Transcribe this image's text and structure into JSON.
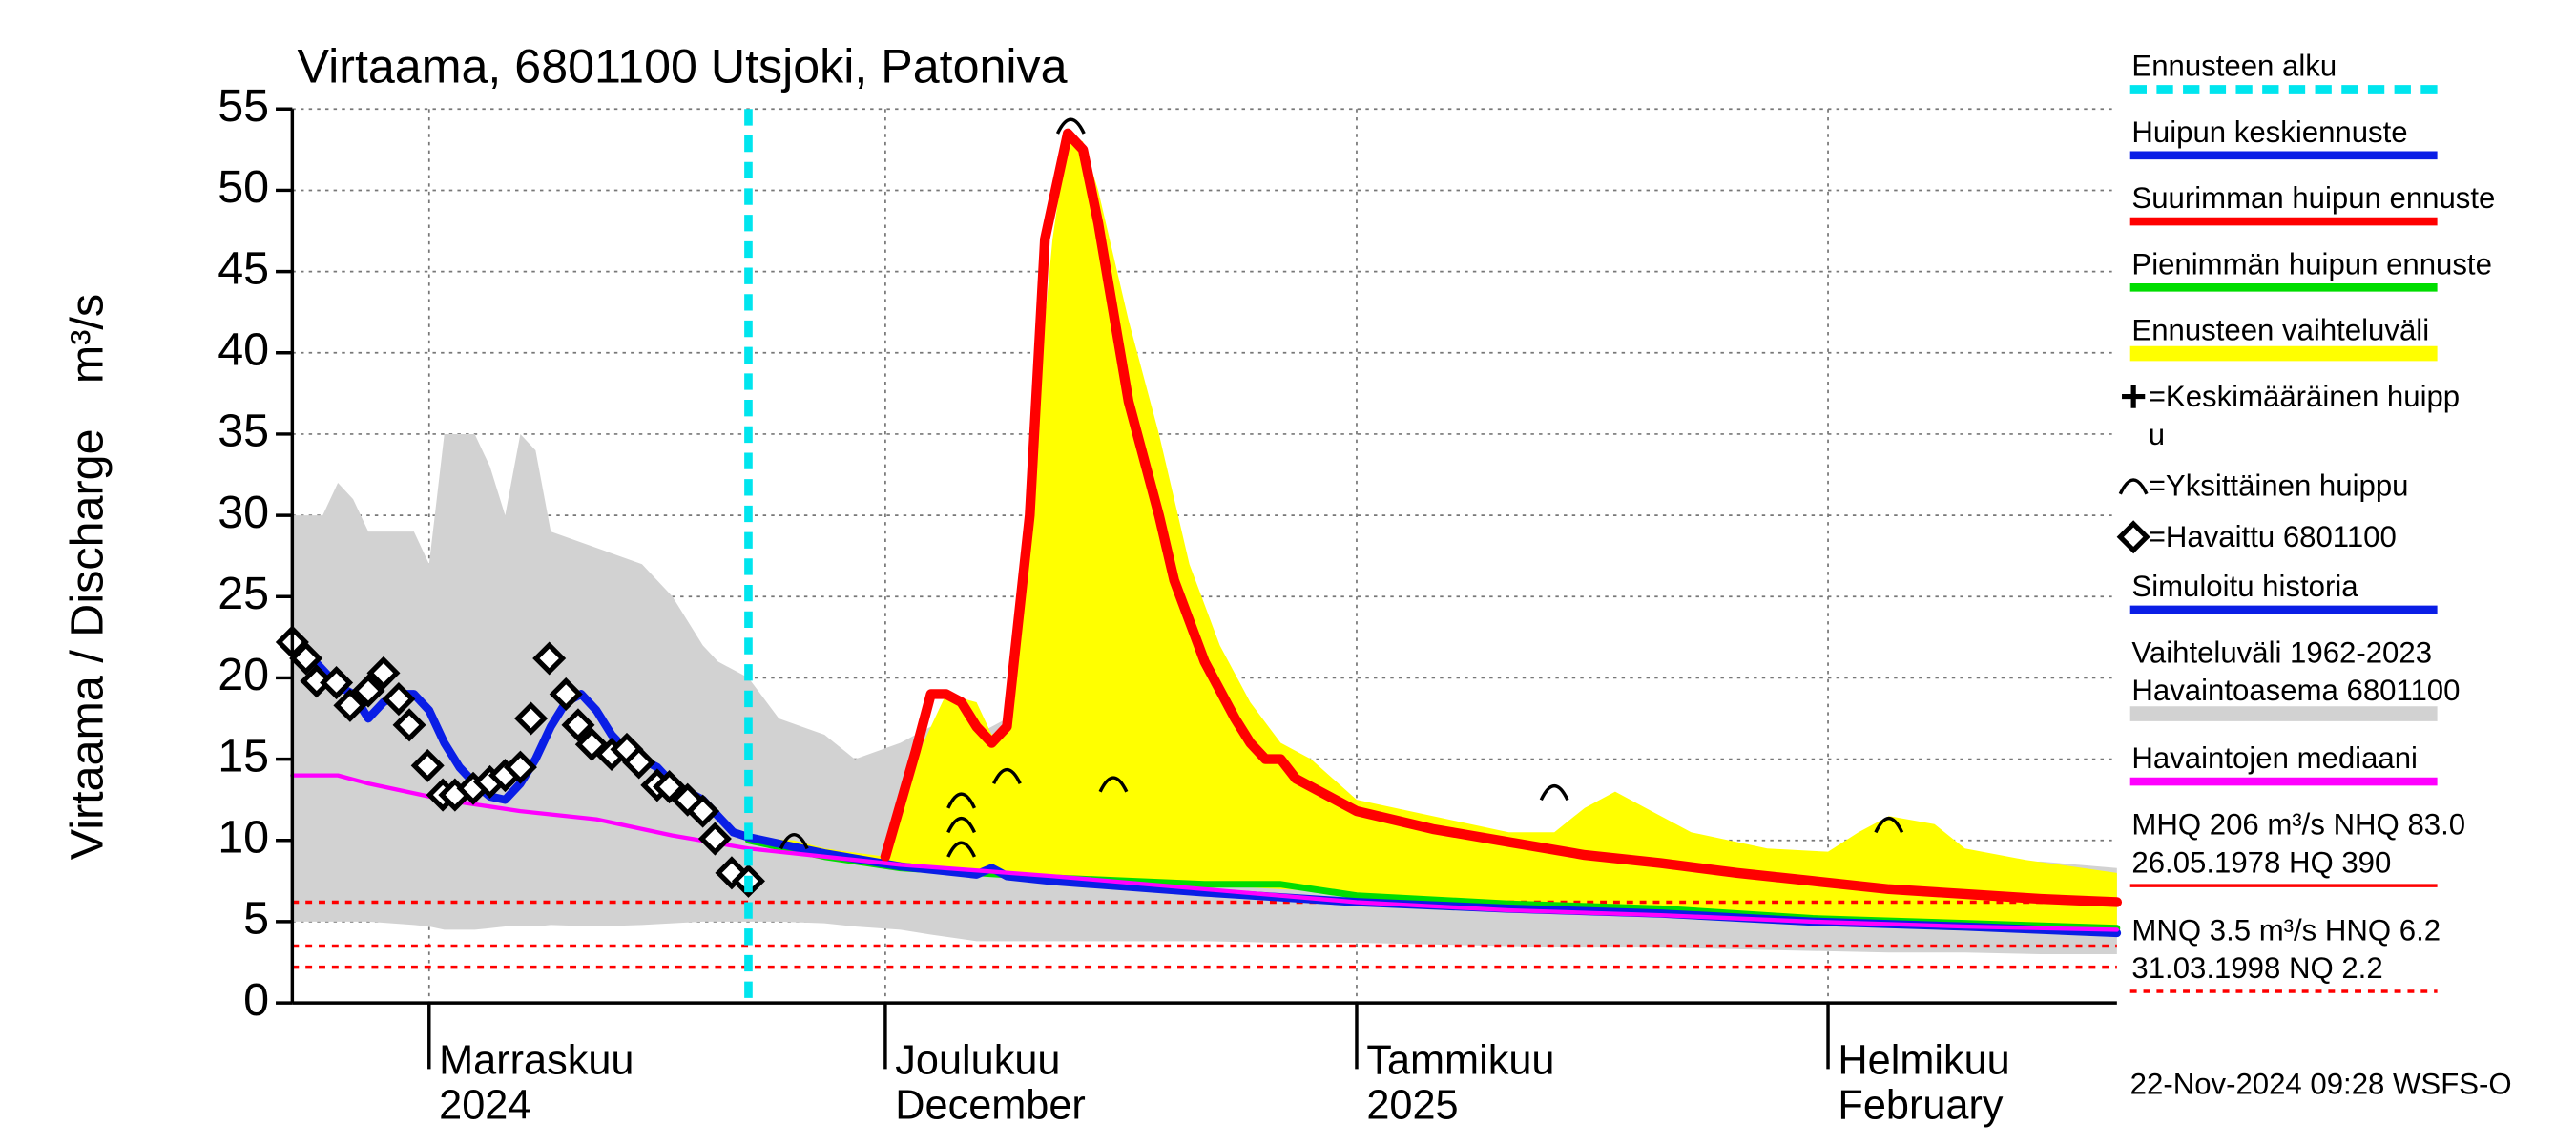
{
  "chart_data": {
    "type": "line",
    "title": "Virtaama, 6801100 Utsjoki, Patoniva",
    "y_label": "Virtaama / Discharge",
    "y_unit": "m³/s",
    "footer": "22-Nov-2024 09:28 WSFS-O",
    "xlim": [
      0,
      120
    ],
    "xticks": [
      {
        "value": 9,
        "label": [
          "Marraskuu",
          "2024"
        ]
      },
      {
        "value": 39,
        "label": [
          "Joulukuu",
          "December"
        ]
      },
      {
        "value": 70,
        "label": [
          "Tammikuu",
          "2025"
        ]
      },
      {
        "value": 101,
        "label": [
          "Helmikuu",
          "February"
        ]
      }
    ],
    "ylim": [
      0,
      55
    ],
    "yticks": [
      0,
      5,
      10,
      15,
      20,
      25,
      30,
      35,
      40,
      45,
      50,
      55
    ],
    "grid": true,
    "series": [
      {
        "name": [
          "Ennusteen alku"
        ],
        "style": "vline",
        "color": "#00e5ee",
        "x": [
          30
        ]
      },
      {
        "name": [
          "Huipun keskiennuste"
        ],
        "style": "line",
        "color": "#0a1ee6",
        "x": [
          30,
          35,
          40,
          45,
          46,
          47,
          50,
          60,
          70,
          80,
          90,
          100,
          110,
          120
        ],
        "values": [
          10.2,
          9.2,
          8.4,
          7.9,
          8.3,
          7.8,
          7.5,
          6.8,
          6.2,
          5.8,
          5.5,
          5,
          4.7,
          4.3
        ]
      },
      {
        "name": [
          "Suurimman huipun ennuste"
        ],
        "style": "line",
        "color": "#ff0000",
        "x": [
          39,
          41,
          42,
          43,
          44,
          45,
          46,
          47,
          48.5,
          49.5,
          51,
          52,
          53,
          55,
          57,
          58,
          60,
          62,
          63,
          64,
          65,
          66,
          68,
          70,
          75,
          80,
          85,
          90,
          95,
          100,
          105,
          110,
          115,
          120
        ],
        "values": [
          9,
          15.5,
          19,
          19,
          18.5,
          17,
          16,
          17,
          30,
          47,
          53.5,
          52.5,
          48,
          37,
          30,
          26,
          21,
          17.5,
          16,
          15,
          15,
          13.8,
          12.8,
          11.8,
          10.7,
          9.9,
          9.1,
          8.6,
          8,
          7.5,
          7,
          6.7,
          6.4,
          6.2
        ]
      },
      {
        "name": [
          "Pienimmän huipun ennuste"
        ],
        "style": "line",
        "color": "#00dd00",
        "x": [
          30,
          35,
          40,
          50,
          60,
          65,
          70,
          80,
          90,
          100,
          110,
          120
        ],
        "values": [
          10,
          9,
          8.3,
          7.7,
          7.3,
          7.3,
          6.6,
          6.1,
          5.8,
          5.2,
          4.9,
          4.6
        ]
      },
      {
        "name": [
          "Ennusteen vaihteluväli"
        ],
        "style": "band",
        "color": "#ffff00",
        "x": [
          30,
          33,
          35,
          39,
          41,
          43,
          45,
          46,
          47,
          49,
          50,
          51,
          52,
          53,
          55,
          57,
          59,
          61,
          63,
          65,
          67,
          70,
          75,
          80,
          83,
          85,
          87,
          89,
          92,
          97,
          101,
          103,
          105,
          108,
          110,
          114,
          120
        ],
        "values": [
          10.2,
          10,
          9.5,
          9,
          15,
          19,
          18.5,
          16.5,
          17,
          37,
          47,
          53.5,
          53,
          50,
          42,
          35,
          27,
          22,
          18.5,
          16,
          15,
          12.5,
          11.5,
          10.5,
          10.5,
          12,
          13,
          12,
          10.5,
          9.5,
          9.3,
          10.5,
          11.5,
          11,
          9.5,
          8.8,
          8
        ],
        "lower": [
          10,
          9.3,
          9,
          8.4,
          8.2,
          8.1,
          8,
          7.9,
          7.85,
          7.7,
          7.6,
          7.55,
          7.5,
          7.45,
          7.4,
          7.3,
          7.25,
          7.2,
          7.1,
          7,
          6.9,
          6.7,
          6.45,
          6.2,
          6.05,
          6,
          5.9,
          5.8,
          5.7,
          5.4,
          5.2,
          5.1,
          5,
          4.95,
          4.9,
          4.75,
          4.6
        ]
      },
      {
        "name": [
          "=Keskimääräinen huipp",
          "u"
        ],
        "style": "markers",
        "marker": "plus",
        "color": "#000000",
        "x": [],
        "values": []
      },
      {
        "name": [
          "=Yksittäinen huippu"
        ],
        "style": "markers",
        "marker": "arc",
        "color": "#000000",
        "x": [
          33,
          44,
          44,
          44,
          47,
          51.2,
          54,
          83,
          105
        ],
        "values": [
          10,
          12.5,
          11,
          9.5,
          14,
          54,
          13.5,
          13,
          11
        ]
      },
      {
        "name": [
          "=Havaittu 6801100"
        ],
        "style": "markers",
        "marker": "diamond",
        "color": "#000000",
        "x": [
          0,
          0.9,
          1.6,
          2.9,
          3.8,
          5,
          6,
          7,
          7.7,
          8.9,
          9.9,
          10.7,
          11.9,
          13,
          14,
          15,
          15.7,
          16.9,
          18,
          18.8,
          19.7,
          21,
          22,
          22.8,
          24,
          24.8,
          26,
          27,
          27.8,
          28.9,
          30
        ],
        "values": [
          22.2,
          21.2,
          19.8,
          19.7,
          18.3,
          19.2,
          20.3,
          18.7,
          17.1,
          14.6,
          12.8,
          12.8,
          13.2,
          13.6,
          14,
          14.5,
          17.5,
          21.2,
          19,
          17.1,
          15.9,
          15.3,
          15.6,
          14.8,
          13.4,
          13.3,
          12.5,
          11.8,
          10.1,
          8,
          7.5
        ]
      },
      {
        "name": [
          "Simuloitu historia"
        ],
        "style": "line",
        "color": "#0a1ee6",
        "x": [
          0,
          1,
          2,
          3,
          4,
          5,
          6,
          7,
          8,
          9,
          10,
          11,
          12,
          13,
          14,
          15,
          16,
          17,
          18,
          19,
          20,
          21,
          22,
          23,
          24,
          25,
          26,
          27,
          28,
          29,
          30
        ],
        "values": [
          22,
          21.5,
          20.5,
          19.5,
          19,
          17.5,
          18.5,
          19,
          19,
          18,
          16,
          14.5,
          13.5,
          12.7,
          12.5,
          13.5,
          15,
          17,
          18.5,
          19,
          18,
          16.5,
          15.5,
          15,
          14.5,
          13.5,
          13,
          12.5,
          11.5,
          10.5,
          10.2
        ]
      },
      {
        "name": [
          "Vaihteluväli 1962-2023",
          " Havaintoasema 6801100"
        ],
        "style": "band",
        "color": "#d2d2d2",
        "x": [
          0,
          2,
          3,
          4,
          5,
          8,
          9,
          10,
          12,
          13,
          14,
          15,
          16,
          17,
          20,
          23,
          25,
          27,
          28,
          30,
          32,
          35,
          37,
          40,
          42,
          45,
          47,
          50,
          55,
          60,
          65,
          70,
          75,
          80,
          85,
          90,
          95,
          100,
          105,
          110,
          115,
          120
        ],
        "values": [
          30,
          30,
          32,
          31,
          29,
          29,
          27,
          35,
          35,
          33,
          30,
          35,
          34,
          29,
          28,
          27,
          25,
          22,
          21,
          20,
          17.5,
          16.5,
          15,
          16,
          17,
          16.5,
          17.5,
          15,
          14.5,
          13,
          12,
          11,
          10.5,
          10,
          9.5,
          9.5,
          9,
          8.7,
          8.5,
          8.5,
          8.7,
          8.3
        ],
        "lower": [
          5,
          5,
          5,
          5,
          5,
          4.8,
          4.7,
          4.5,
          4.5,
          4.6,
          4.7,
          4.7,
          4.7,
          4.8,
          4.7,
          4.8,
          4.9,
          5,
          5,
          5,
          5,
          4.9,
          4.7,
          4.5,
          4.2,
          3.8,
          3.8,
          3.8,
          3.8,
          3.8,
          3.7,
          3.7,
          3.6,
          3.5,
          3.4,
          3.4,
          3.3,
          3.2,
          3.1,
          3.1,
          3,
          3
        ]
      },
      {
        "name": [
          "Havaintojen mediaani"
        ],
        "style": "line",
        "color": "#ff00ff",
        "x": [
          0,
          3,
          5,
          10,
          15,
          20,
          25,
          30,
          40,
          50,
          60,
          70,
          80,
          90,
          100,
          110,
          120
        ],
        "values": [
          14,
          14,
          13.5,
          12.5,
          11.8,
          11.3,
          10.3,
          9.5,
          8.5,
          7.8,
          7,
          6.2,
          5.7,
          5.4,
          5,
          4.7,
          4.5
        ]
      },
      {
        "name": [
          "MHQ  206 m³/s NHQ 83.0",
          "26.05.1978 HQ  390"
        ],
        "style": "legend-line",
        "color": "#ff0000"
      },
      {
        "name": [
          "MNQ  3.5 m³/s HNQ  6.2",
          "31.03.1998 NQ  2.2"
        ],
        "style": "hline",
        "color": "#ff0000",
        "values": [
          6.2,
          3.5,
          2.2
        ]
      }
    ]
  }
}
